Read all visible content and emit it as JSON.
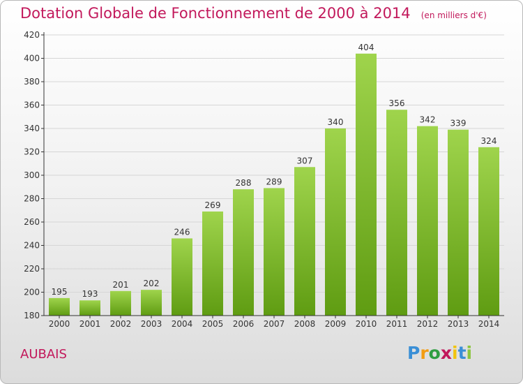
{
  "title": "Dotation Globale de Fonctionnement de 2000 à 2014",
  "unit": "(en milliers d'€)",
  "commune": "AUBAIS",
  "logo": {
    "text": "Proxiti",
    "letters": [
      "P",
      "r",
      "o",
      "x",
      "i",
      "t",
      "i"
    ],
    "colors": [
      "#3a8fd6",
      "#f39c12",
      "#2f9e41",
      "#c2185b",
      "#f1c40f",
      "#3a8fd6",
      "#8cc63f"
    ]
  },
  "colors": {
    "title": "#c2185b",
    "bar_top": "#9fd44c",
    "bar_bottom": "#5f9c12",
    "grid": "#d6d6d6",
    "axis": "#333333"
  },
  "chart_data": {
    "type": "bar",
    "categories": [
      "2000",
      "2001",
      "2002",
      "2003",
      "2004",
      "2005",
      "2006",
      "2007",
      "2008",
      "2009",
      "2010",
      "2011",
      "2012",
      "2013",
      "2014"
    ],
    "values": [
      195,
      193,
      201,
      202,
      246,
      269,
      288,
      289,
      307,
      340,
      404,
      356,
      342,
      339,
      324
    ],
    "ylim": [
      180,
      420
    ],
    "yticks": [
      180,
      200,
      220,
      240,
      260,
      280,
      300,
      320,
      340,
      360,
      380,
      400,
      420
    ],
    "grid": true,
    "data_labels": true
  }
}
